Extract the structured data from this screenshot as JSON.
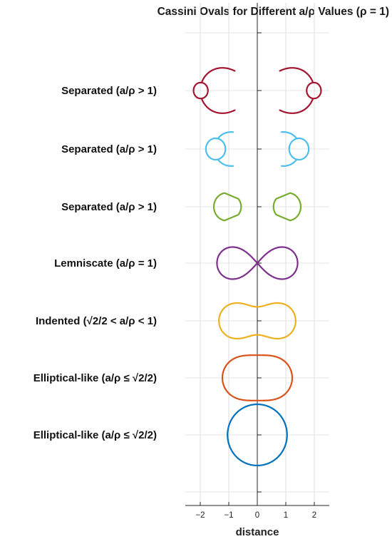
{
  "chart_data": {
    "type": "line",
    "title": "Cassini Ovals for Different a/ρ Values (ρ = 1)",
    "xlabel": "distance",
    "ylabel": "",
    "xlim": [
      -2.5,
      2.5
    ],
    "x_ticks": [
      -2,
      -1,
      0,
      1,
      2
    ],
    "x_tick_labels": [
      "−2",
      "−1",
      "0",
      "1",
      "2"
    ],
    "grid": true,
    "rows": [
      {
        "label": "Separated (a/ρ > 1)",
        "a": 2.0,
        "color": "#A2142F"
      },
      {
        "label": "Separated (a/ρ > 1)",
        "a": 1.5,
        "color": "#4DBEEE"
      },
      {
        "label": "Separated (a/ρ > 1)",
        "a": 1.15,
        "color": "#77AC30"
      },
      {
        "label": "Lemniscate (a/ρ = 1)",
        "a": 1.0,
        "color": "#7E2F8E"
      },
      {
        "label": "Indented (√2/2 < a/ρ < 1)",
        "a": 0.9,
        "color": "#EDB120"
      },
      {
        "label": "Elliptical-like (a/ρ ≤ √2/2)",
        "a": 0.7071,
        "color": "#D95319"
      },
      {
        "label": "Elliptical-like (a/ρ ≤ √2/2)",
        "a": 0.3,
        "color": "#0072BD"
      }
    ]
  }
}
